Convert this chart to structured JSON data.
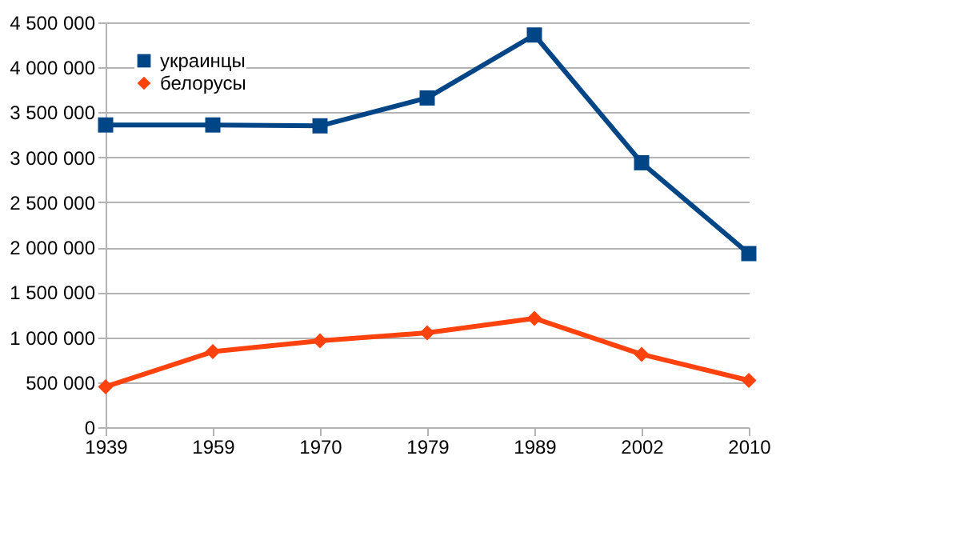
{
  "chart_data": {
    "type": "line",
    "categories": [
      "1939",
      "1959",
      "1970",
      "1979",
      "1989",
      "2002",
      "2010"
    ],
    "series": [
      {
        "name": "украинцы",
        "color": "#004586",
        "marker": "square",
        "values": [
          3360000,
          3360000,
          3350000,
          3660000,
          4360000,
          2940000,
          1930000
        ]
      },
      {
        "name": "белорусы",
        "color": "#ff420e",
        "marker": "diamond",
        "values": [
          450000,
          840000,
          960000,
          1050000,
          1210000,
          810000,
          520000
        ]
      }
    ],
    "ylim": [
      0,
      4500000
    ],
    "yticks": [
      {
        "value": 0,
        "label": "0"
      },
      {
        "value": 500000,
        "label": "500 000"
      },
      {
        "value": 1000000,
        "label": "1 000 000"
      },
      {
        "value": 1500000,
        "label": "1 500 000"
      },
      {
        "value": 2000000,
        "label": "2 000 000"
      },
      {
        "value": 2500000,
        "label": "2 500 000"
      },
      {
        "value": 3000000,
        "label": "3 000 000"
      },
      {
        "value": 3500000,
        "label": "3 500 000"
      },
      {
        "value": 4000000,
        "label": "4 000 000"
      },
      {
        "value": 4500000,
        "label": "4 500 000"
      }
    ],
    "grid": "y",
    "legend": "top left",
    "line_style": "solid"
  }
}
